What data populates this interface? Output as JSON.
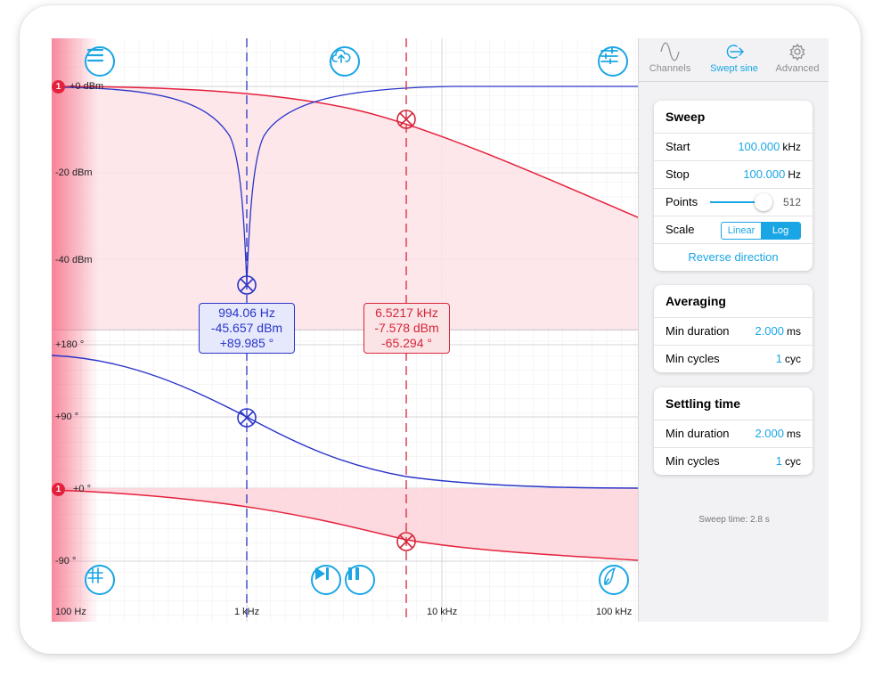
{
  "plot": {
    "y_labels_mag": [
      "+0 dBm",
      "-20 dBm",
      "-40 dBm"
    ],
    "y_labels_phase": [
      "+180 °",
      "+90 °",
      "+0 °",
      "-90 °"
    ],
    "x_labels": [
      "100 Hz",
      "1 kHz",
      "10 kHz",
      "100 kHz"
    ],
    "ref_badge": "1",
    "cursor_blue": {
      "freq": "994.06 Hz",
      "mag": "-45.657 dBm",
      "phase": "+89.985 °"
    },
    "cursor_red": {
      "freq": "6.5217 kHz",
      "mag": "-7.578 dBm",
      "phase": "-65.294 °"
    },
    "colors": {
      "blue": "#2a35c9",
      "red": "#e5203c",
      "accent": "#1aa6e4"
    }
  },
  "tabs": [
    {
      "label": "Channels",
      "icon": "sine-wave-icon"
    },
    {
      "label": "Swept sine",
      "icon": "output-arrow-icon"
    },
    {
      "label": "Advanced",
      "icon": "gear-icon"
    }
  ],
  "sweep": {
    "title": "Sweep",
    "start_label": "Start",
    "start_value": "100.000",
    "start_unit": "kHz",
    "stop_label": "Stop",
    "stop_value": "100.000",
    "stop_unit": "Hz",
    "points_label": "Points",
    "points_value": "512",
    "points_fraction": 0.85,
    "scale_label": "Scale",
    "scale_linear": "Linear",
    "scale_log": "Log",
    "reverse": "Reverse direction"
  },
  "averaging": {
    "title": "Averaging",
    "duration_label": "Min duration",
    "duration_value": "2.000",
    "duration_unit": "ms",
    "cycles_label": "Min cycles",
    "cycles_value": "1",
    "cycles_unit": "cyc"
  },
  "settling": {
    "title": "Settling time",
    "duration_label": "Min duration",
    "duration_value": "2.000",
    "duration_unit": "ms",
    "cycles_label": "Min cycles",
    "cycles_value": "1",
    "cycles_unit": "cyc"
  },
  "sweep_time": "Sweep time: 2.8 s"
}
